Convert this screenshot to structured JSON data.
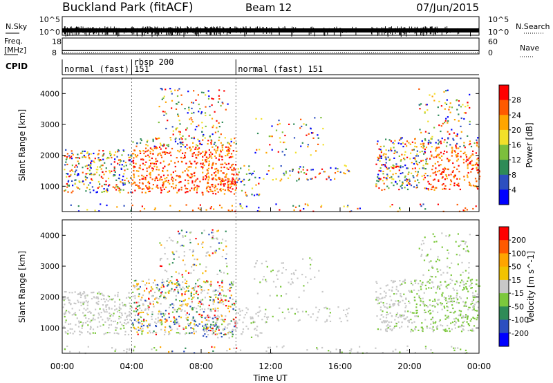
{
  "header": {
    "station": "Buckland Park (fitACF)",
    "beam": "Beam 12",
    "date": "07/Jun/2015"
  },
  "chart_data": [
    {
      "type": "line",
      "name": "noise-panel",
      "left_label": "N.Sky",
      "right_label": "N.Search",
      "left_ticks": [
        "10^5",
        "10^0"
      ],
      "right_ticks": [
        "10^5",
        "10^0"
      ]
    },
    {
      "type": "line",
      "name": "frequency-panel",
      "ylabel_line1": "Freq.",
      "ylabel_line2": "[MHz]",
      "left_ticks": [
        18,
        8
      ],
      "right_label": "Nave",
      "right_ticks": [
        60,
        0
      ]
    },
    {
      "type": "table",
      "name": "cpid-panel",
      "label": "CPID",
      "segments": [
        {
          "text": "normal (fast) 151",
          "start_h": 0,
          "end_h": 4
        },
        {
          "text": "rbsp  200",
          "start_h": 4,
          "end_h": 10
        },
        {
          "text": "normal (fast) 151",
          "start_h": 10,
          "end_h": 24
        }
      ]
    },
    {
      "type": "heatmap",
      "name": "power-panel",
      "ylabel": "Slant Range [km]",
      "ylim": [
        180,
        4500
      ],
      "yticks": [
        1000,
        2000,
        3000,
        4000
      ],
      "xlim": [
        0,
        24
      ],
      "colorbar": {
        "label": "Power [dB]",
        "ticks": [
          "4",
          "8",
          "12",
          "16",
          "20",
          "24",
          "28"
        ],
        "colors": [
          "#0000ff",
          "#2d4fc0",
          "#2e8b57",
          "#7cbf3c",
          "#f2e02a",
          "#ffa500",
          "#ff5a00",
          "#ff0000"
        ]
      }
    },
    {
      "type": "heatmap",
      "name": "velocity-panel",
      "ylabel": "Slant Range [km]",
      "ylim": [
        180,
        4500
      ],
      "yticks": [
        1000,
        2000,
        3000,
        4000
      ],
      "xlim": [
        0,
        24
      ],
      "xlabel": "Time UT",
      "xticks": [
        "00:00",
        "04:00",
        "08:00",
        "12:00",
        "16:00",
        "20:00",
        "00:00"
      ],
      "colorbar": {
        "label": "Velocity [m s^-1]",
        "ticks": [
          "200",
          "100",
          "50",
          "15",
          "-15",
          "-50",
          "-100",
          "-200"
        ],
        "colors": [
          "#ff0000",
          "#ff5a00",
          "#ffa500",
          "#f2c300",
          "#c8c8c8",
          "#7cc83c",
          "#2e8b57",
          "#2d4fc0",
          "#0000ff"
        ]
      }
    }
  ]
}
